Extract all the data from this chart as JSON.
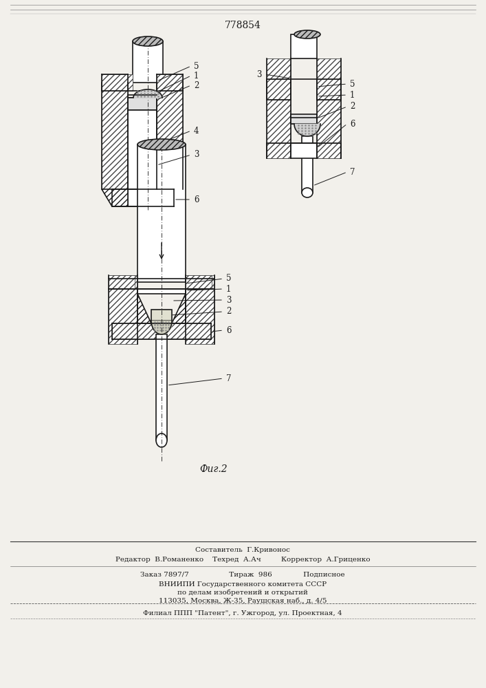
{
  "patent_number": "778854",
  "fig_label": "Фиг.2",
  "bg_color": "#f2f0eb",
  "line_color": "#1a1a1a",
  "footer_lines": [
    "Составитель  Г.Кривонос",
    "Редактор  В.Романенко    Техред  А.Ач         Корректор  А.Гриценко",
    "Заказ 7897/7                  Тираж  986              Подписное",
    "ВНИИПИ Государственного комитета СССР",
    "по делам изобретений и открытий",
    "113035, Москва, Ж-35, Раушская наб., д. 4/5",
    "Филиал ППП \"Патент\", г. Ужгород, ул. Проектная, 4"
  ]
}
